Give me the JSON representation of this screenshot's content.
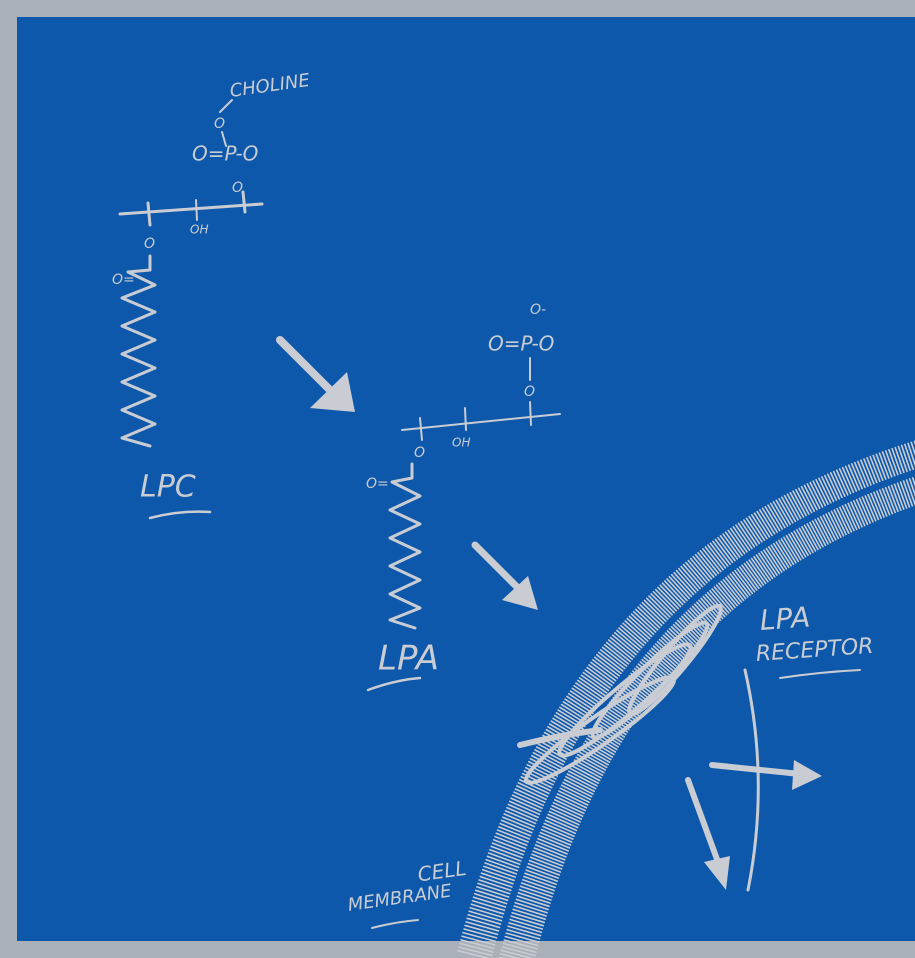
{
  "lpc": {
    "choline": "CHOLINE",
    "top_oxygen": "O",
    "phosphate": "O=P-O",
    "lower_oxygen": "O",
    "hydroxyl": "OH",
    "ester_oxygen": "O",
    "carbonyl": "O=",
    "label": "LPC"
  },
  "lpa": {
    "charged_oxygen": "O-",
    "phosphate": "O=P-O",
    "lower_oxygen": "O",
    "hydroxyl": "OH",
    "ester_oxygen": "O",
    "carbonyl": "O=",
    "label": "LPA"
  },
  "receptor": {
    "label_line1": "LPA",
    "label_line2": "RECEPTOR"
  },
  "membrane": {
    "label_line1": "CELL",
    "label_line2": "MEMBRANE"
  }
}
